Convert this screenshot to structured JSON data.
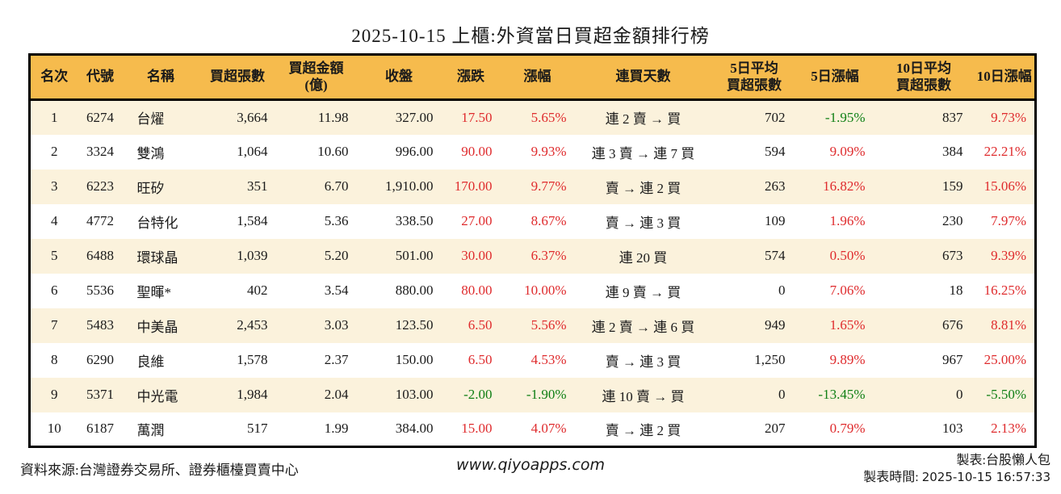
{
  "title": "2025-10-15 上櫃:外資當日買超金額排行榜",
  "colors": {
    "up": "#df2b2d",
    "down": "#0f7f14",
    "header_bg": "#f6bb4d",
    "stripe_bg": "#fbf2dc",
    "border": "#000000",
    "text": "#1a1a1a"
  },
  "table": {
    "columns": [
      {
        "key": "rank",
        "label": "名次",
        "align": "center",
        "signed": false
      },
      {
        "key": "code",
        "label": "代號",
        "align": "center",
        "signed": false
      },
      {
        "key": "name",
        "label": "名稱",
        "align": "left",
        "signed": false
      },
      {
        "key": "buy_vol",
        "label": "買超張數",
        "align": "right",
        "signed": false
      },
      {
        "key": "buy_amt",
        "label": "買超金額\n(億)",
        "align": "right",
        "signed": false
      },
      {
        "key": "close",
        "label": "收盤",
        "align": "right",
        "signed": false
      },
      {
        "key": "change",
        "label": "漲跌",
        "align": "right",
        "signed": true
      },
      {
        "key": "change_pct",
        "label": "漲幅",
        "align": "right",
        "signed": true
      },
      {
        "key": "streak",
        "label": "連買天數",
        "align": "center",
        "signed": false
      },
      {
        "key": "d5_avg_vol",
        "label": "5日平均\n買超張數",
        "align": "right",
        "signed": false
      },
      {
        "key": "d5_pct",
        "label": "5日漲幅",
        "align": "right",
        "signed": true
      },
      {
        "key": "d10_avg_vol",
        "label": "10日平均\n買超張數",
        "align": "right",
        "signed": false
      },
      {
        "key": "d10_pct",
        "label": "10日漲幅",
        "align": "right",
        "signed": true
      }
    ],
    "rows": [
      [
        "1",
        "6274",
        "台燿",
        "3,664",
        "11.98",
        "327.00",
        "17.50",
        "5.65%",
        "連 2 賣 → 買",
        "702",
        "-1.95%",
        "837",
        "9.73%"
      ],
      [
        "2",
        "3324",
        "雙鴻",
        "1,064",
        "10.60",
        "996.00",
        "90.00",
        "9.93%",
        "連 3 賣 → 連 7 買",
        "594",
        "9.09%",
        "384",
        "22.21%"
      ],
      [
        "3",
        "6223",
        "旺矽",
        "351",
        "6.70",
        "1,910.00",
        "170.00",
        "9.77%",
        "賣 → 連 2 買",
        "263",
        "16.82%",
        "159",
        "15.06%"
      ],
      [
        "4",
        "4772",
        "台特化",
        "1,584",
        "5.36",
        "338.50",
        "27.00",
        "8.67%",
        "賣 → 連 3 買",
        "109",
        "1.96%",
        "230",
        "7.97%"
      ],
      [
        "5",
        "6488",
        "環球晶",
        "1,039",
        "5.20",
        "501.00",
        "30.00",
        "6.37%",
        "連 20 買",
        "574",
        "0.50%",
        "673",
        "9.39%"
      ],
      [
        "6",
        "5536",
        "聖暉*",
        "402",
        "3.54",
        "880.00",
        "80.00",
        "10.00%",
        "連 9 賣 → 買",
        "0",
        "7.06%",
        "18",
        "16.25%"
      ],
      [
        "7",
        "5483",
        "中美晶",
        "2,453",
        "3.03",
        "123.50",
        "6.50",
        "5.56%",
        "連 2 賣 → 連 6 買",
        "949",
        "1.65%",
        "676",
        "8.81%"
      ],
      [
        "8",
        "6290",
        "良維",
        "1,578",
        "2.37",
        "150.00",
        "6.50",
        "4.53%",
        "賣 → 連 3 買",
        "1,250",
        "9.89%",
        "967",
        "25.00%"
      ],
      [
        "9",
        "5371",
        "中光電",
        "1,984",
        "2.04",
        "103.00",
        "-2.00",
        "-1.90%",
        "連 10 賣 → 買",
        "0",
        "-13.45%",
        "0",
        "-5.50%"
      ],
      [
        "10",
        "6187",
        "萬潤",
        "517",
        "1.99",
        "384.00",
        "15.00",
        "4.07%",
        "賣 → 連 2 買",
        "207",
        "0.79%",
        "103",
        "2.13%"
      ]
    ]
  },
  "footer": {
    "source": "資料來源:台灣證券交易所、證券櫃檯買賣中心",
    "website": "www.qiyoapps.com",
    "maker": "製表:台股懶人包",
    "made_time_label": "製表時間:",
    "made_time_value": "2025-10-15 16:57:33"
  }
}
